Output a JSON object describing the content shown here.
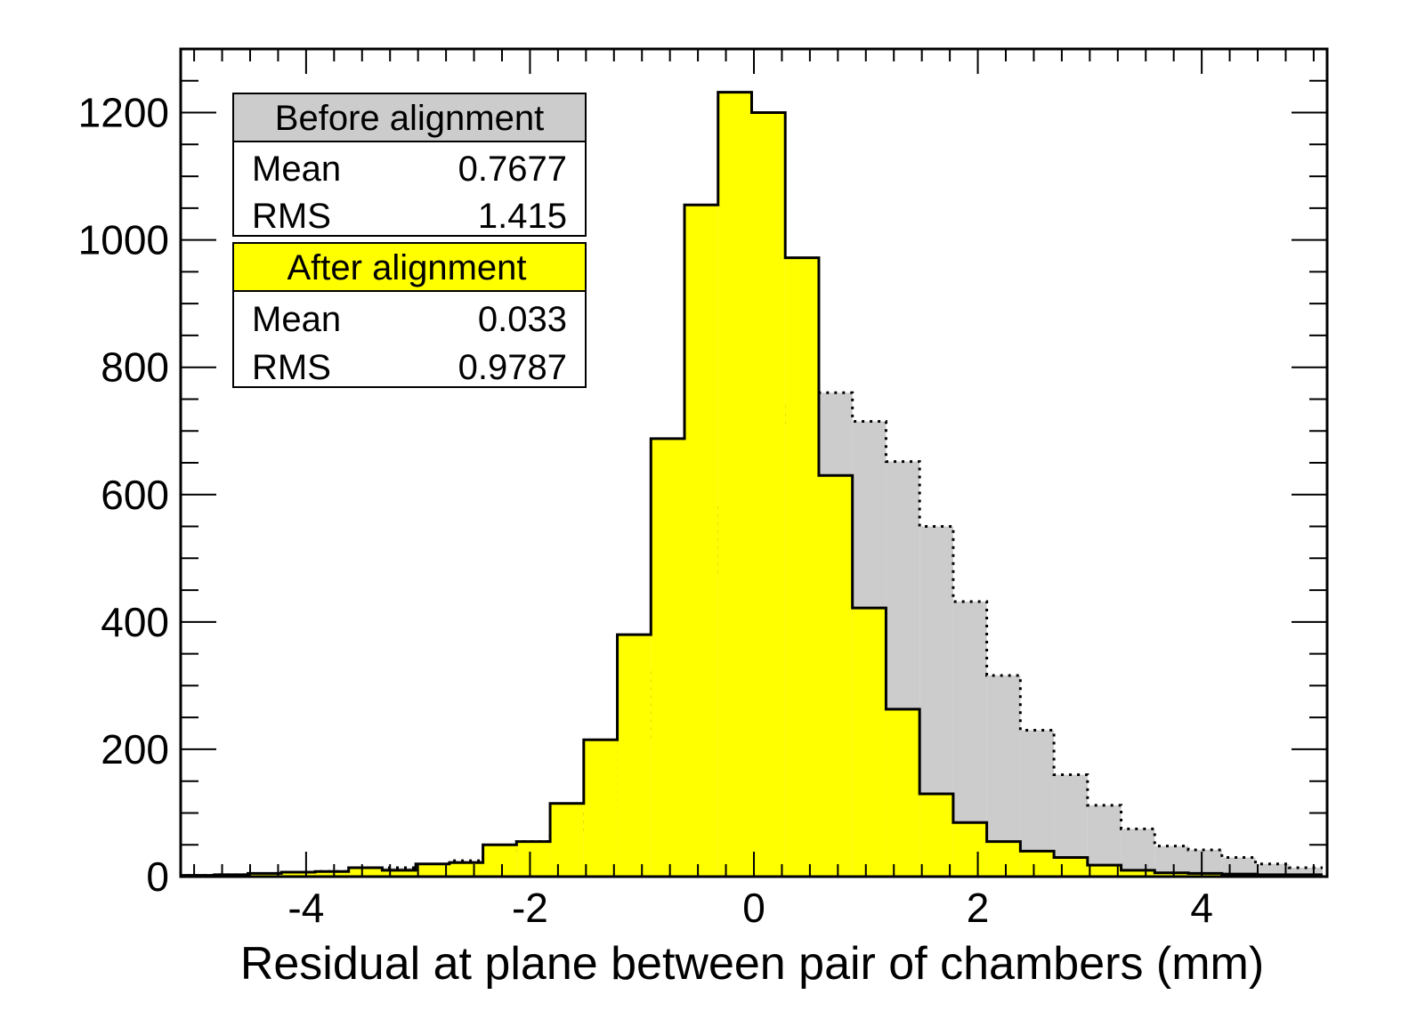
{
  "chart_data": {
    "type": "bar",
    "title": "",
    "xlabel": "Residual at plane between pair of chambers (mm)",
    "ylabel": "",
    "xlim": [
      -5.12,
      5.12
    ],
    "ylim": [
      0,
      1300
    ],
    "x_tick_labels": [
      "-4",
      "-2",
      "0",
      "2",
      "4"
    ],
    "y_tick_labels": [
      "0",
      "200",
      "400",
      "600",
      "800",
      "1000",
      "1200"
    ],
    "bin_edges_start": -5.12,
    "bin_width": 0.3,
    "series": [
      {
        "name": "Before alignment",
        "fill": "#cccccc",
        "line": "dotted",
        "values": [
          2,
          3,
          4,
          6,
          8,
          12,
          14,
          18,
          25,
          35,
          55,
          70,
          105,
          220,
          330,
          470,
          580,
          705,
          745,
          760,
          715,
          652,
          550,
          432,
          316,
          230,
          160,
          112,
          75,
          48,
          42,
          30,
          20,
          14
        ]
      },
      {
        "name": "After alignment",
        "fill": "#ffff00",
        "line": "solid",
        "values": [
          2,
          3,
          5,
          7,
          8,
          14,
          10,
          20,
          22,
          50,
          55,
          115,
          215,
          380,
          688,
          1055,
          1232,
          1200,
          972,
          630,
          422,
          263,
          130,
          85,
          55,
          40,
          30,
          18,
          10,
          6,
          5,
          4,
          3,
          3
        ]
      }
    ],
    "legend": {
      "placement": "top-left",
      "before_header": "Before alignment",
      "before_mean_label": "Mean",
      "before_mean_value": "0.7677",
      "before_rms_label": "RMS",
      "before_rms_value": "1.415",
      "after_header": "After alignment",
      "after_mean_label": "Mean",
      "after_mean_value": "0.033",
      "after_rms_label": "RMS",
      "after_rms_value": "0.9787"
    }
  }
}
